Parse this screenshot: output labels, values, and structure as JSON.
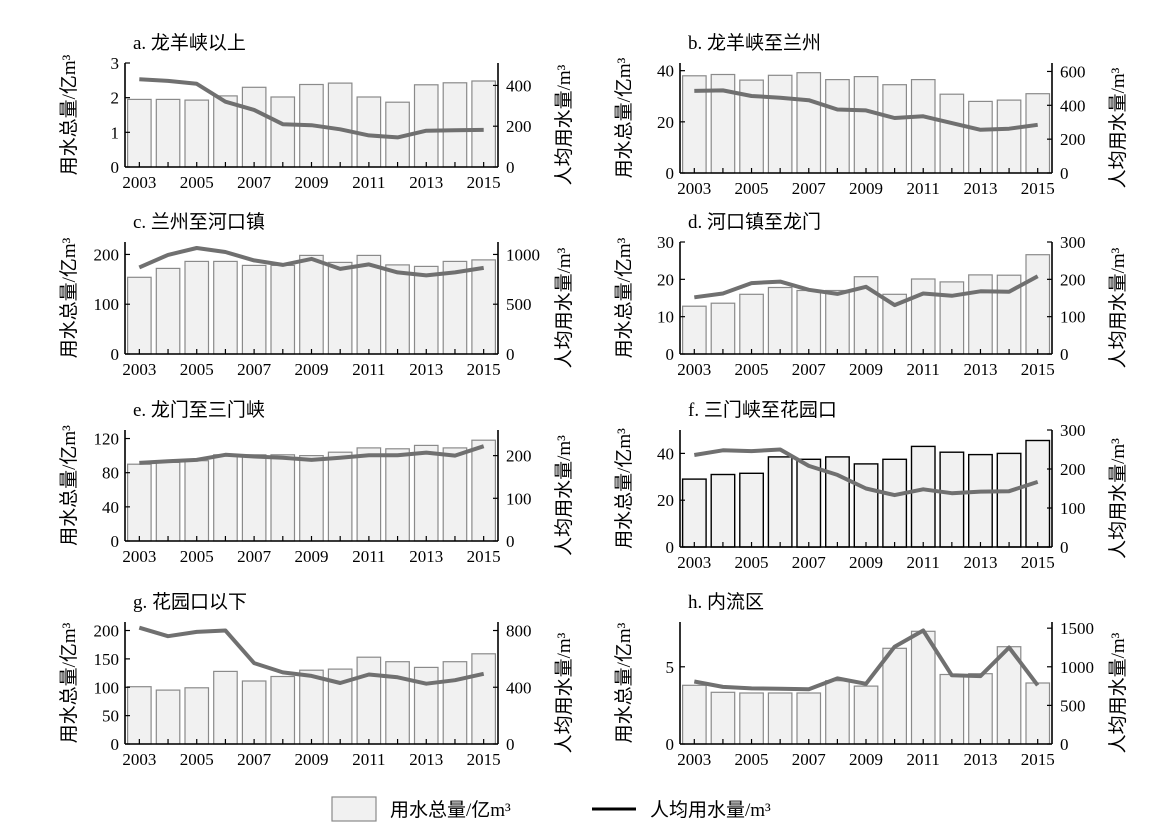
{
  "colors": {
    "bar_fill": "#f1f1f1",
    "bar_stroke": "#8a8a8a",
    "bar_stroke_dark": "#000000",
    "line": "#707070",
    "axis": "#000000"
  },
  "legend": {
    "bar_label": "用水总量/亿m³",
    "line_label": "人均用水量/m³"
  },
  "chart_data": [
    {
      "type": "bar+line",
      "title": "a. 龙羊峡以上",
      "ylabel_left": "用水总量/亿m³",
      "ylabel_right": "人均用水量/m³",
      "x": [
        2003,
        2004,
        2005,
        2006,
        2007,
        2008,
        2009,
        2010,
        2011,
        2012,
        2013,
        2014,
        2015
      ],
      "xticks": [
        "2003",
        "2005",
        "2007",
        "2009",
        "2011",
        "2013",
        "2015"
      ],
      "bars": [
        1.95,
        1.95,
        1.93,
        2.05,
        2.3,
        2.02,
        2.38,
        2.42,
        2.02,
        1.87,
        2.37,
        2.43,
        2.48
      ],
      "line": [
        430,
        422,
        408,
        320,
        280,
        210,
        205,
        185,
        155,
        145,
        178,
        180,
        182
      ],
      "ylim_left": [
        0,
        3
      ],
      "yticks_left": [
        "0",
        "1",
        "2",
        "3"
      ],
      "ylim_right": [
        0,
        510
      ],
      "yticks_right": [
        "0",
        "200",
        "400"
      ]
    },
    {
      "type": "bar+line",
      "title": "b. 龙羊峡至兰州",
      "ylabel_left": "用水总量/亿m³",
      "ylabel_right": "人均用水量/m³",
      "x": [
        2003,
        2004,
        2005,
        2006,
        2007,
        2008,
        2009,
        2010,
        2011,
        2012,
        2013,
        2014,
        2015
      ],
      "xticks": [
        "2003",
        "2005",
        "2007",
        "2009",
        "2011",
        "2013",
        "2015"
      ],
      "bars": [
        38,
        38.5,
        36.3,
        38.2,
        39.2,
        36.5,
        37.7,
        34.5,
        36.5,
        30.8,
        28,
        28.5,
        31
      ],
      "line": [
        485,
        488,
        455,
        445,
        430,
        375,
        370,
        325,
        335,
        295,
        255,
        262,
        285
      ],
      "ylim_left": [
        0,
        43
      ],
      "yticks_left": [
        "0",
        "20",
        "40"
      ],
      "ylim_right": [
        0,
        650
      ],
      "yticks_right": [
        "0",
        "200",
        "400",
        "600"
      ]
    },
    {
      "type": "bar+line",
      "title": "c. 兰州至河口镇",
      "ylabel_left": "用水总量/亿m³",
      "ylabel_right": "人均用水量/m³",
      "x": [
        2003,
        2004,
        2005,
        2006,
        2007,
        2008,
        2009,
        2010,
        2011,
        2012,
        2013,
        2014,
        2015
      ],
      "xticks": [
        "2003",
        "2005",
        "2007",
        "2009",
        "2011",
        "2013",
        "2015"
      ],
      "bars": [
        154,
        172,
        186,
        186,
        178,
        178,
        198,
        184,
        198,
        179,
        176,
        186,
        189
      ],
      "line": [
        870,
        995,
        1065,
        1025,
        940,
        895,
        955,
        855,
        900,
        820,
        790,
        820,
        865
      ],
      "ylim_left": [
        0,
        225
      ],
      "yticks_left": [
        "0",
        "100",
        "200"
      ],
      "ylim_right": [
        0,
        1125
      ],
      "yticks_right": [
        "0",
        "500",
        "1000"
      ]
    },
    {
      "type": "bar+line",
      "title": "d. 河口镇至龙门",
      "ylabel_left": "用水总量/亿m³",
      "ylabel_right": "人均用水量/m³",
      "x": [
        2003,
        2004,
        2005,
        2006,
        2007,
        2008,
        2009,
        2010,
        2011,
        2012,
        2013,
        2014,
        2015
      ],
      "xticks": [
        "2003",
        "2005",
        "2007",
        "2009",
        "2011",
        "2013",
        "2015"
      ],
      "bars": [
        12.8,
        13.6,
        16,
        17.8,
        17,
        17,
        20.7,
        16,
        20.1,
        19.3,
        21.2,
        21.1,
        26.6
      ],
      "line": [
        152,
        162,
        190,
        194,
        172,
        161,
        180,
        131,
        162,
        156,
        168,
        167,
        208
      ],
      "ylim_left": [
        0,
        30
      ],
      "yticks_left": [
        "0",
        "10",
        "20",
        "30"
      ],
      "ylim_right": [
        0,
        300
      ],
      "yticks_right": [
        "0",
        "100",
        "200",
        "300"
      ]
    },
    {
      "type": "bar+line",
      "title": "e. 龙门至三门峡",
      "ylabel_left": "用水总量/亿m³",
      "ylabel_right": "人均用水量/m³",
      "x": [
        2003,
        2004,
        2005,
        2006,
        2007,
        2008,
        2009,
        2010,
        2011,
        2012,
        2013,
        2014,
        2015
      ],
      "xticks": [
        "2003",
        "2005",
        "2007",
        "2009",
        "2011",
        "2013",
        "2015"
      ],
      "bars": [
        90,
        92,
        94,
        101,
        101,
        101,
        100,
        104,
        109,
        108,
        112,
        109,
        118
      ],
      "line": [
        183,
        187,
        190,
        202,
        198,
        195,
        190,
        195,
        201,
        201,
        207,
        200,
        222
      ],
      "ylim_left": [
        0,
        130
      ],
      "yticks_left": [
        "0",
        "40",
        "80",
        "120"
      ],
      "ylim_right": [
        0,
        260
      ],
      "yticks_right": [
        "0",
        "100",
        "200"
      ]
    },
    {
      "type": "bar+line",
      "title": "f. 三门峡至花园口",
      "ylabel_left": "用水总量/亿m³",
      "ylabel_right": "人均用水量/m³",
      "x": [
        2003,
        2004,
        2005,
        2006,
        2007,
        2008,
        2009,
        2010,
        2011,
        2012,
        2013,
        2014,
        2015
      ],
      "xticks": [
        "2003",
        "2005",
        "2007",
        "2009",
        "2011",
        "2013",
        "2015"
      ],
      "bars": [
        29,
        31,
        31.5,
        38.5,
        37.5,
        38.5,
        35.5,
        37.5,
        43,
        40.5,
        39.5,
        40,
        45.5
      ],
      "line": [
        236,
        248,
        246,
        250,
        208,
        185,
        150,
        133,
        148,
        138,
        142,
        143,
        167
      ],
      "ylim_left": [
        0,
        50
      ],
      "yticks_left": [
        "0",
        "20",
        "40"
      ],
      "ylim_right": [
        0,
        300
      ],
      "yticks_right": [
        "0",
        "100",
        "200",
        "300"
      ]
    },
    {
      "type": "bar+line",
      "title": "g. 花园口以下",
      "ylabel_left": "用水总量/亿m³",
      "ylabel_right": "人均用水量/m³",
      "x": [
        2003,
        2004,
        2005,
        2006,
        2007,
        2008,
        2009,
        2010,
        2011,
        2012,
        2013,
        2014,
        2015
      ],
      "xticks": [
        "2003",
        "2005",
        "2007",
        "2009",
        "2011",
        "2013",
        "2015"
      ],
      "bars": [
        101,
        95,
        99,
        128,
        111,
        119,
        130,
        132,
        153,
        145,
        135,
        145,
        159
      ],
      "line": [
        820,
        760,
        790,
        800,
        570,
        505,
        480,
        430,
        490,
        470,
        425,
        450,
        495
      ],
      "ylim_left": [
        0,
        215
      ],
      "yticks_left": [
        "0",
        "50",
        "100",
        "150",
        "200"
      ],
      "ylim_right": [
        0,
        860
      ],
      "yticks_right": [
        "0",
        "400",
        "800"
      ]
    },
    {
      "type": "bar+line",
      "title": "h. 内流区",
      "ylabel_left": "用水总量/亿m³",
      "ylabel_right": "人均用水量/m³",
      "x": [
        2003,
        2004,
        2005,
        2006,
        2007,
        2008,
        2009,
        2010,
        2011,
        2012,
        2013,
        2014,
        2015
      ],
      "xticks": [
        "2003",
        "2005",
        "2007",
        "2009",
        "2011",
        "2013",
        "2015"
      ],
      "bars": [
        3.8,
        3.35,
        3.3,
        3.3,
        3.3,
        4.1,
        3.75,
        6.2,
        7.3,
        4.5,
        4.55,
        6.3,
        3.95
      ],
      "line": [
        810,
        740,
        720,
        715,
        710,
        850,
        780,
        1260,
        1470,
        890,
        880,
        1250,
        760
      ],
      "ylim_left": [
        0,
        7.9
      ],
      "yticks_left": [
        "0",
        "5"
      ],
      "ylim_right": [
        0,
        1580
      ],
      "yticks_right": [
        "0",
        "500",
        "1000",
        "1500"
      ]
    }
  ]
}
